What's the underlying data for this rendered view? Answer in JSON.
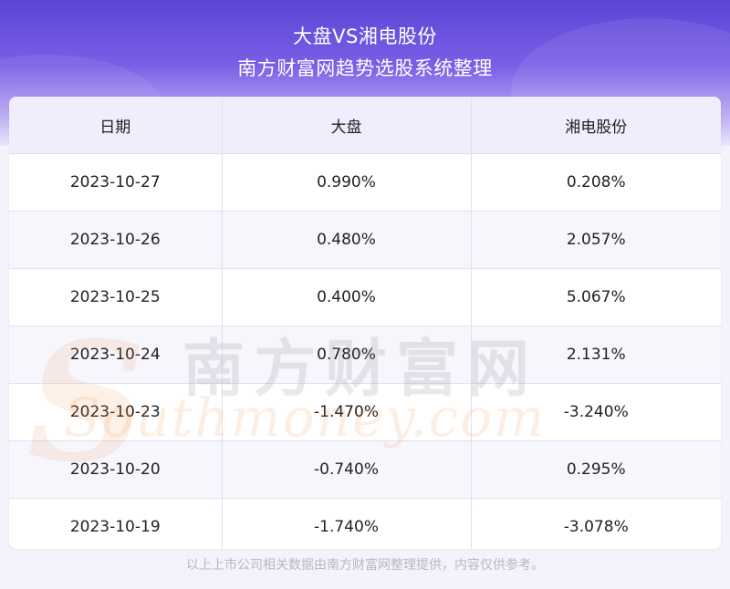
{
  "header": {
    "title_line1": "大盘VS湘电股份",
    "title_line2": "南方财富网趋势选股系统整理"
  },
  "table": {
    "columns": [
      "日期",
      "大盘",
      "湘电股份"
    ],
    "rows": [
      [
        "2023-10-27",
        "0.990%",
        "0.208%"
      ],
      [
        "2023-10-26",
        "0.480%",
        "2.057%"
      ],
      [
        "2023-10-25",
        "0.400%",
        "5.067%"
      ],
      [
        "2023-10-24",
        "0.780%",
        "2.131%"
      ],
      [
        "2023-10-23",
        "-1.470%",
        "-3.240%"
      ],
      [
        "2023-10-20",
        "-0.740%",
        "0.295%"
      ],
      [
        "2023-10-19",
        "-1.740%",
        "-3.078%"
      ]
    ]
  },
  "watermark": {
    "chinese": "南方财富网",
    "english": "Southmoney.com"
  },
  "footer": {
    "text": "以上上市公司相关数据由南方财富网整理提供，内容仅供参考。"
  },
  "colors": {
    "header_top": "#5b45d6",
    "header_bottom": "#e9e5fb"
  }
}
